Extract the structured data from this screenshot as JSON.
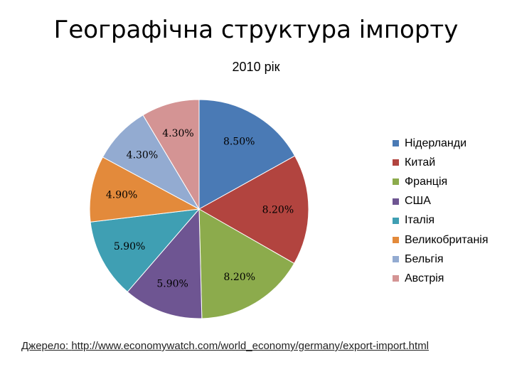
{
  "chart_data": {
    "type": "pie",
    "title": "Географічна структура імпорту",
    "subtitle": "2010 рік",
    "categories": [
      "Нідерланди",
      "Китай",
      "Франція",
      "США",
      "Італія",
      "Великобританія",
      "Бельгія",
      "Австрія"
    ],
    "values": [
      8.5,
      8.2,
      8.2,
      5.9,
      5.9,
      4.9,
      4.3,
      4.3
    ],
    "labels": [
      "8.50%",
      "8.20%",
      "8.20%",
      "5.90%",
      "5.90%",
      "4.90%",
      "4.30%",
      "4.30%"
    ],
    "colors": [
      "#4a7ab5",
      "#b2443f",
      "#8cab4c",
      "#6e5592",
      "#3f9fb3",
      "#e38a3b",
      "#93abd1",
      "#d49494"
    ],
    "legend_position": "right"
  },
  "source": {
    "prefix": "Джерело: ",
    "url": "http://www.economywatch.com/world_economy/germany/export-import.html"
  }
}
